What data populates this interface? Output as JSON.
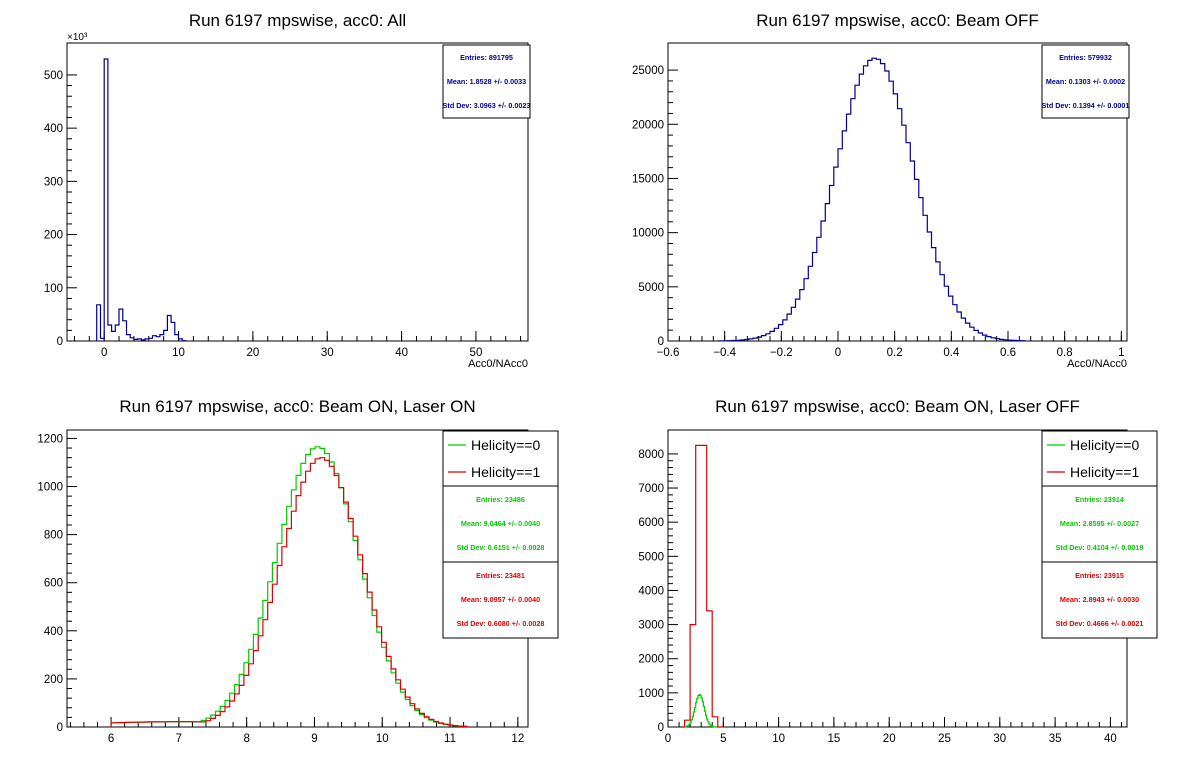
{
  "window": {
    "title": ""
  },
  "colors": {
    "blue": "#000099",
    "green": "#00cc00",
    "red": "#dd0000",
    "axis": "#000000"
  },
  "chart_data": [
    {
      "type": "histogram",
      "title": "Run 6197 mpswise, acc0: All",
      "xlabel": "Acc0/NAcc0",
      "ylabel": "",
      "xlim": [
        -5,
        57
      ],
      "ylim": [
        0,
        560000
      ],
      "y_multiplier_label": "×10³",
      "xticks": [
        0,
        10,
        20,
        30,
        40,
        50
      ],
      "yticks": [
        0,
        100000,
        200000,
        300000,
        400000,
        500000
      ],
      "ytick_labels": [
        "0",
        "100",
        "200",
        "300",
        "400",
        "500"
      ],
      "grid": false,
      "stats_box": {
        "position": "top-right",
        "color": "#000099",
        "entries": "Entries: 891795",
        "mean": "Mean: 1.8528 +/- 0.0033",
        "std": "Std Dev: 3.0963 +/- 0.0023"
      },
      "legend": null,
      "series": [
        {
          "color": "#000099",
          "bin_edges": [
            -1,
            -0.5,
            0,
            0.5,
            1,
            1.5,
            2,
            2.5,
            3,
            3.5,
            4,
            4.5,
            5,
            5.5,
            6,
            6.5,
            7,
            7.5,
            8,
            8.5,
            9,
            9.5,
            10,
            10.5,
            11
          ],
          "counts": [
            68000,
            5000,
            530000,
            30000,
            18000,
            30000,
            60000,
            38000,
            12000,
            6000,
            3000,
            4000,
            2000,
            4000,
            5000,
            10000,
            8000,
            12000,
            20000,
            48000,
            35000,
            12000,
            4000,
            500
          ]
        }
      ]
    },
    {
      "type": "histogram",
      "title": "Run 6197 mpswise, acc0: Beam OFF",
      "xlabel": "Acc0/NAcc0",
      "ylabel": "",
      "xlim": [
        -0.6,
        1.02
      ],
      "ylim": [
        0,
        27500
      ],
      "xticks": [
        -0.6,
        -0.4,
        -0.2,
        0,
        0.2,
        0.4,
        0.6,
        0.8,
        1
      ],
      "xtick_labels": [
        "−0.6",
        "−0.4",
        "−0.2",
        "0",
        "0.2",
        "0.4",
        "0.6",
        "0.8",
        "1"
      ],
      "yticks": [
        0,
        5000,
        10000,
        15000,
        20000,
        25000
      ],
      "ytick_labels": [
        "0",
        "5000",
        "10000",
        "15000",
        "20000",
        "25000"
      ],
      "grid": false,
      "stats_box": {
        "position": "top-right",
        "color": "#000099",
        "entries": "Entries: 579932",
        "mean": "Mean: 0.1303 +/- 0.0002",
        "std": "Std Dev: 0.1394 +/- 0.0001"
      },
      "legend": null,
      "series": [
        {
          "color": "#000099",
          "gaussian": {
            "mean": 0.13,
            "sigma": 0.1394,
            "peak": 26100,
            "xmin": -0.42,
            "xmax": 0.66,
            "bin": 0.015
          }
        }
      ]
    },
    {
      "type": "histogram",
      "title": "Run 6197 mpswise, acc0: Beam ON, Laser ON",
      "xlabel": "",
      "ylabel": "",
      "xlim": [
        5.35,
        12.15
      ],
      "ylim": [
        0,
        1235
      ],
      "xticks": [
        6,
        7,
        8,
        9,
        10,
        11,
        12
      ],
      "yticks": [
        0,
        200,
        400,
        600,
        800,
        1000,
        1200
      ],
      "ytick_labels": [
        "0",
        "200",
        "400",
        "600",
        "800",
        "1000",
        "1200"
      ],
      "grid": false,
      "legend": {
        "position": "top-right",
        "entries": [
          "Helicity==0",
          "Helicity==1"
        ]
      },
      "stats_boxes": [
        {
          "color": "#00cc00",
          "entries": "Entries: 23486",
          "mean": "Mean: 9.0464 +/- 0.0040",
          "std": "Std Dev: 0.6151 +/- 0.0028"
        },
        {
          "color": "#dd0000",
          "entries": "Entries: 23481",
          "mean": "Mean: 9.0957 +/- 0.0040",
          "std": "Std Dev: 0.6080 +/- 0.0028"
        }
      ],
      "series": [
        {
          "name": "Helicity==0",
          "color": "#00cc00",
          "gaussian": {
            "mean": 9.05,
            "sigma": 0.615,
            "peak": 1165,
            "xmin": 6.0,
            "xmax": 11.3,
            "bin": 0.07,
            "floor": 22
          }
        },
        {
          "name": "Helicity==1",
          "color": "#dd0000",
          "gaussian": {
            "mean": 9.1,
            "sigma": 0.608,
            "peak": 1120,
            "xmin": 6.0,
            "xmax": 11.3,
            "bin": 0.07,
            "floor": 22
          }
        }
      ]
    },
    {
      "type": "histogram",
      "title": "Run 6197 mpswise, acc0: Beam ON, Laser OFF",
      "xlabel": "",
      "ylabel": "",
      "xlim": [
        0,
        41.5
      ],
      "ylim": [
        0,
        8700
      ],
      "xticks": [
        0,
        5,
        10,
        15,
        20,
        25,
        30,
        35,
        40
      ],
      "yticks": [
        0,
        1000,
        2000,
        3000,
        4000,
        5000,
        6000,
        7000,
        8000
      ],
      "ytick_labels": [
        "0",
        "1000",
        "2000",
        "3000",
        "4000",
        "5000",
        "6000",
        "7000",
        "8000"
      ],
      "grid": false,
      "legend": {
        "position": "top-right",
        "entries": [
          "Helicity==0",
          "Helicity==1"
        ]
      },
      "stats_boxes": [
        {
          "color": "#00cc00",
          "entries": "Entries: 23914",
          "mean": "Mean: 2.8595 +/- 0.0027",
          "std": "Std Dev: 0.4104 +/- 0.0019"
        },
        {
          "color": "#dd0000",
          "entries": "Entries: 23915",
          "mean": "Mean: 2.8943 +/- 0.0030",
          "std": "Std Dev: 0.4666 +/- 0.0021"
        }
      ],
      "series": [
        {
          "name": "Helicity==0",
          "color": "#00cc00",
          "gaussian": {
            "mean": 2.86,
            "sigma": 0.41,
            "peak": 950,
            "xmin": 1.5,
            "xmax": 4.5,
            "bin": 0.1
          }
        },
        {
          "name": "Helicity==1",
          "color": "#dd0000",
          "bin_edges": [
            1.5,
            2.0,
            2.5,
            3.0,
            3.5,
            4.0,
            4.5,
            5.0
          ],
          "counts": [
            200,
            3000,
            8250,
            8250,
            3400,
            300,
            0
          ]
        }
      ]
    }
  ]
}
